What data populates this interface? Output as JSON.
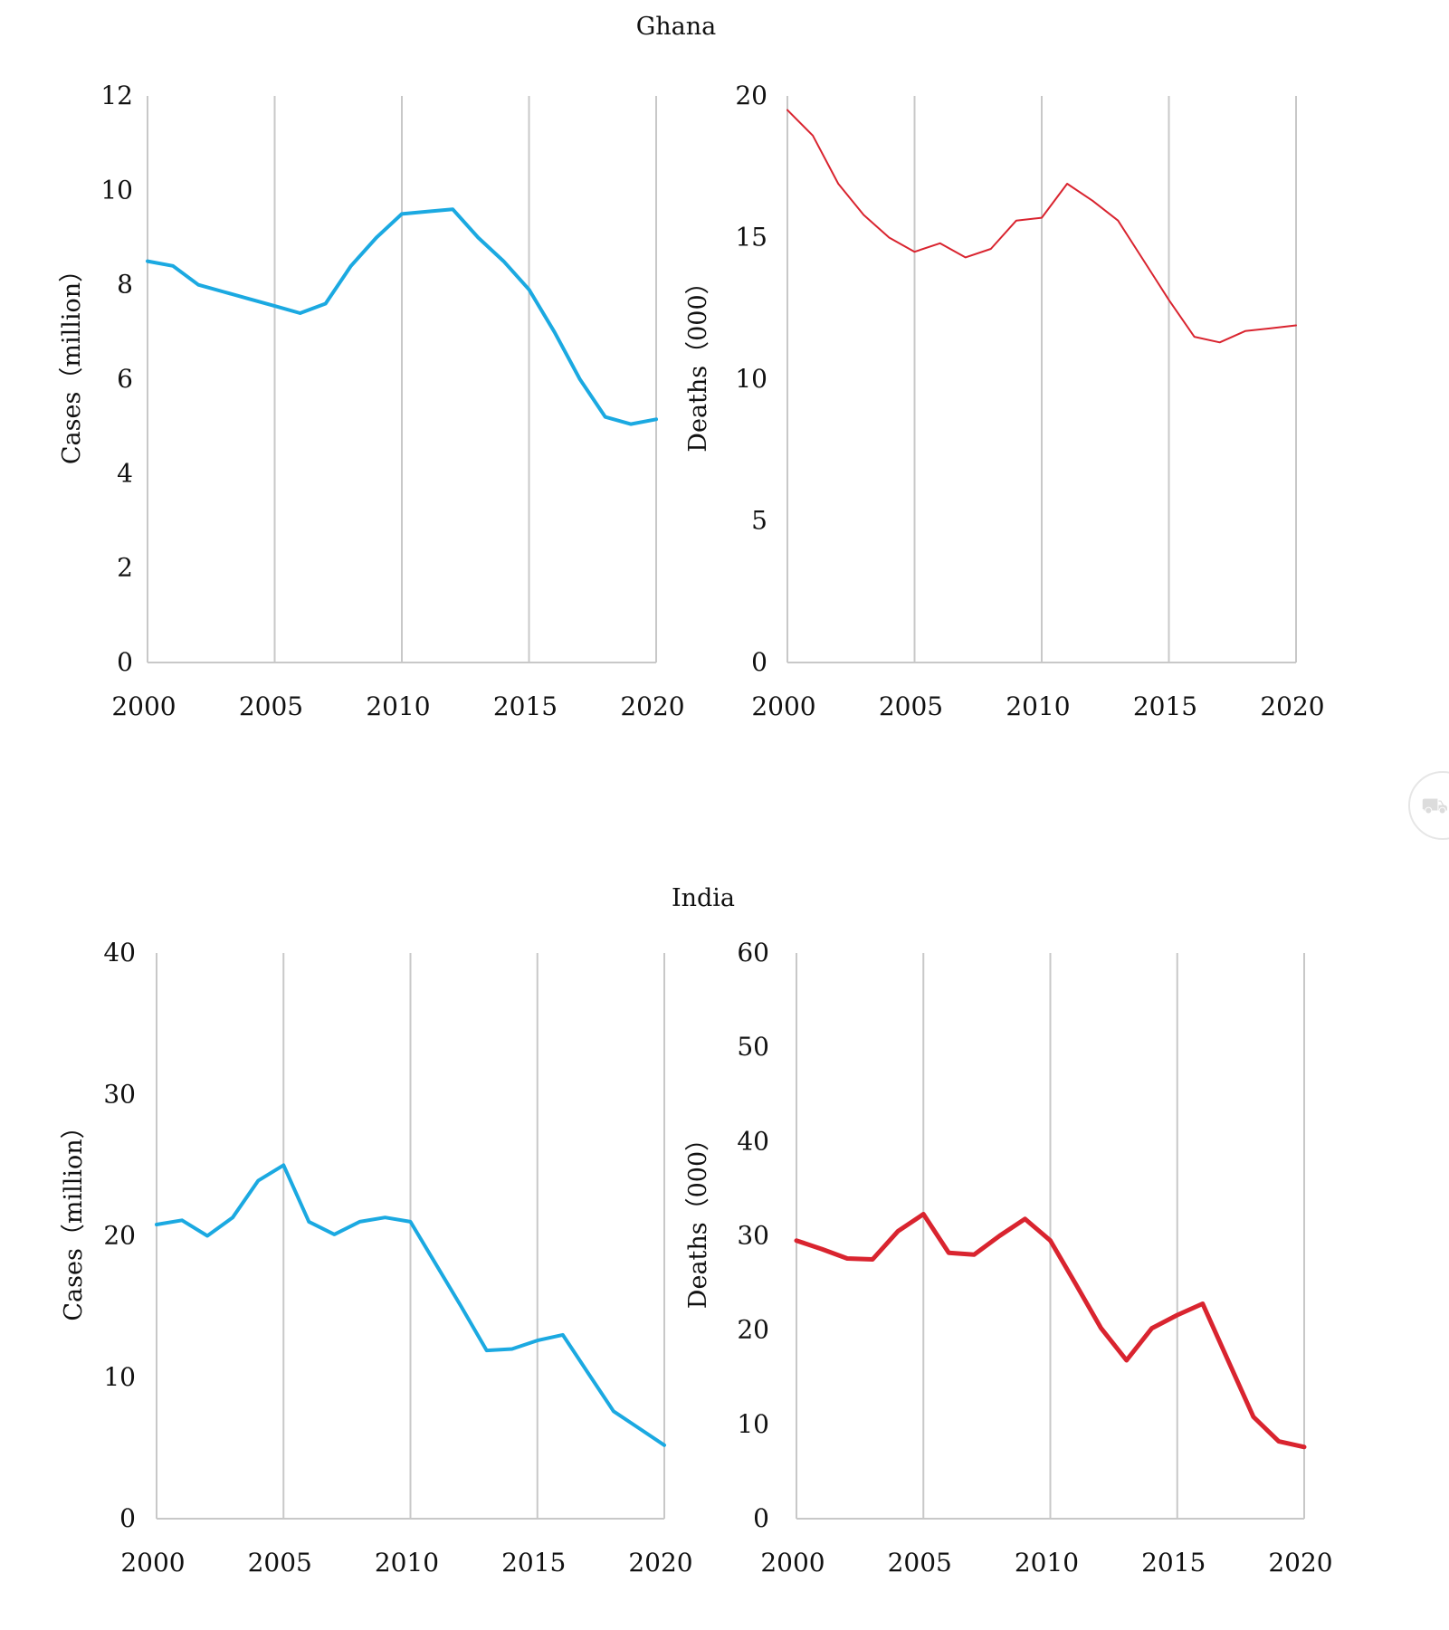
{
  "panels": [
    {
      "title": "Ghana"
    },
    {
      "title": "India"
    }
  ],
  "colors": {
    "cases": "#1ba9e1",
    "deaths": "#d9242f",
    "grid": "#c8c8c8",
    "axis": "#c8c8c8"
  },
  "side_icon": "car-icon",
  "chart_data": [
    {
      "type": "line",
      "panel": "Ghana",
      "title": "",
      "xlabel": "",
      "ylabel": "Cases（million）",
      "xlim": [
        2000,
        2020
      ],
      "ylim": [
        0,
        12
      ],
      "xticks": [
        2000,
        2005,
        2010,
        2015,
        2020
      ],
      "yticks": [
        0,
        2,
        4,
        6,
        8,
        10,
        12
      ],
      "grid": "vertical",
      "series": [
        {
          "color": "#1ba9e1",
          "x": [
            2000,
            2001,
            2002,
            2003,
            2004,
            2005,
            2006,
            2007,
            2008,
            2009,
            2010,
            2011,
            2012,
            2013,
            2014,
            2015,
            2016,
            2017,
            2018,
            2019,
            2020
          ],
          "y": [
            8.5,
            8.4,
            8.0,
            7.85,
            7.7,
            7.55,
            7.4,
            7.6,
            8.4,
            9.0,
            9.5,
            9.55,
            9.6,
            9.0,
            8.5,
            7.9,
            7.0,
            6.0,
            5.2,
            5.05,
            5.15
          ]
        }
      ]
    },
    {
      "type": "line",
      "panel": "Ghana",
      "title": "",
      "xlabel": "",
      "ylabel": "Deaths（000）",
      "xlim": [
        2000,
        2020
      ],
      "ylim": [
        0,
        20
      ],
      "xticks": [
        2000,
        2005,
        2010,
        2015,
        2020
      ],
      "yticks": [
        0,
        5,
        10,
        15,
        20
      ],
      "grid": "vertical",
      "series": [
        {
          "color": "#d9242f",
          "x": [
            2000,
            2001,
            2002,
            2003,
            2004,
            2005,
            2006,
            2007,
            2008,
            2009,
            2010,
            2011,
            2012,
            2013,
            2014,
            2015,
            2016,
            2017,
            2018,
            2019,
            2020
          ],
          "y": [
            19.5,
            18.6,
            16.9,
            15.8,
            15.0,
            14.5,
            14.8,
            14.3,
            14.6,
            15.6,
            15.7,
            16.9,
            16.3,
            15.6,
            14.2,
            12.8,
            11.5,
            11.3,
            11.7,
            11.8,
            11.9
          ]
        }
      ]
    },
    {
      "type": "line",
      "panel": "India",
      "title": "",
      "xlabel": "",
      "ylabel": "Cases（million）",
      "xlim": [
        2000,
        2020
      ],
      "ylim": [
        0,
        40
      ],
      "xticks": [
        2000,
        2005,
        2010,
        2015,
        2020
      ],
      "yticks": [
        0,
        10,
        20,
        30,
        40
      ],
      "grid": "vertical",
      "series": [
        {
          "color": "#1ba9e1",
          "x": [
            2000,
            2001,
            2002,
            2003,
            2004,
            2005,
            2006,
            2007,
            2008,
            2009,
            2010,
            2011,
            2012,
            2013,
            2014,
            2015,
            2016,
            2017,
            2018,
            2019,
            2020
          ],
          "y": [
            20.8,
            21.1,
            20.0,
            21.3,
            23.9,
            25.0,
            21.0,
            20.1,
            21.0,
            21.3,
            21.0,
            18.0,
            15.0,
            11.9,
            12.0,
            12.6,
            13.0,
            10.3,
            7.6,
            6.4,
            5.2
          ]
        }
      ]
    },
    {
      "type": "line",
      "panel": "India",
      "title": "",
      "xlabel": "",
      "ylabel": "Deaths（000）",
      "xlim": [
        2000,
        2020
      ],
      "ylim": [
        0,
        60
      ],
      "xticks": [
        2000,
        2005,
        2010,
        2015,
        2020
      ],
      "yticks": [
        0,
        10,
        20,
        30,
        40,
        50,
        60
      ],
      "grid": "vertical",
      "series": [
        {
          "color": "#d9242f",
          "x": [
            2000,
            2001,
            2002,
            2003,
            2004,
            2005,
            2006,
            2007,
            2008,
            2009,
            2010,
            2011,
            2012,
            2013,
            2014,
            2015,
            2016,
            2017,
            2018,
            2019,
            2020
          ],
          "y": [
            29.5,
            28.6,
            27.6,
            27.5,
            30.5,
            32.3,
            28.2,
            28.0,
            30.0,
            31.8,
            29.5,
            24.9,
            20.2,
            16.8,
            20.2,
            21.6,
            22.8,
            16.8,
            10.8,
            8.2,
            7.6
          ]
        }
      ]
    }
  ]
}
